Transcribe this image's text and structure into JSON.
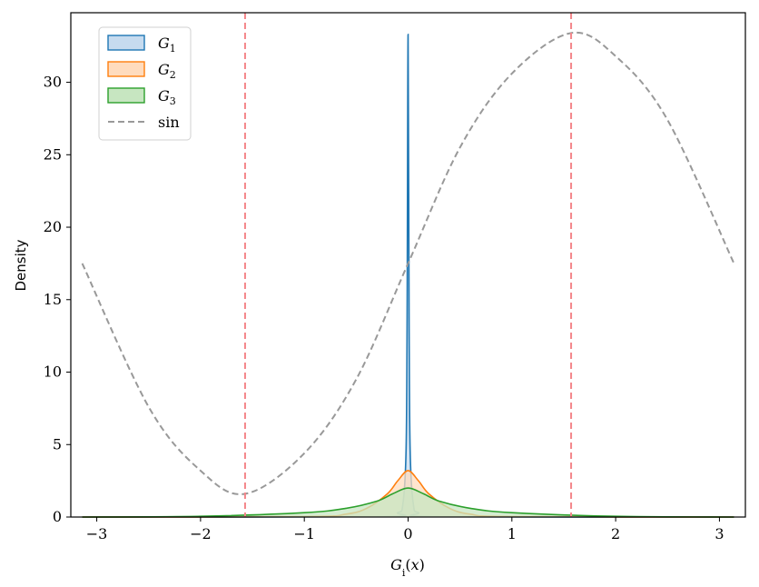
{
  "chart_data": {
    "type": "area",
    "xlabel": "G_i(x)",
    "ylabel": "Density",
    "xlim": [
      -3.25,
      3.25
    ],
    "ylim": [
      0,
      34.8
    ],
    "xticks": [
      -3,
      -2,
      -1,
      0,
      1,
      2,
      3
    ],
    "yticks": [
      0,
      5,
      10,
      15,
      20,
      25,
      30
    ],
    "xtick_labels": [
      "−3",
      "−2",
      "−1",
      "0",
      "1",
      "2",
      "3"
    ],
    "ytick_labels": [
      "0",
      "5",
      "10",
      "15",
      "20",
      "25",
      "30"
    ],
    "grid": false,
    "legend_position": "top-left",
    "series": [
      {
        "name": "G",
        "subscript": "1",
        "kind": "kde",
        "color": "#1f77b4",
        "fill": "#c6dbef",
        "x": [
          -3.14,
          -0.3,
          -0.1,
          -0.05,
          -0.02,
          -0.01,
          0.0,
          0.01,
          0.02,
          0.05,
          0.1,
          0.3,
          3.14
        ],
        "y": [
          0,
          0.02,
          0.3,
          0.9,
          4.5,
          13,
          33.3,
          13,
          4.5,
          0.9,
          0.3,
          0.02,
          0
        ]
      },
      {
        "name": "G",
        "subscript": "2",
        "kind": "kde",
        "color": "#ff7f0e",
        "fill": "#ffdcbe",
        "x": [
          -3.14,
          -1.0,
          -0.6,
          -0.4,
          -0.2,
          -0.1,
          0.0,
          0.1,
          0.2,
          0.4,
          0.6,
          1.0,
          3.14
        ],
        "y": [
          0,
          0.03,
          0.2,
          0.6,
          1.6,
          2.5,
          3.2,
          2.5,
          1.6,
          0.6,
          0.2,
          0.03,
          0
        ]
      },
      {
        "name": "G",
        "subscript": "3",
        "kind": "kde",
        "color": "#2ca02c",
        "fill": "#c7e6c1",
        "x": [
          -3.14,
          -2.0,
          -1.0,
          -0.6,
          -0.3,
          -0.15,
          0.0,
          0.15,
          0.3,
          0.6,
          1.0,
          2.0,
          3.14
        ],
        "y": [
          0,
          0.05,
          0.3,
          0.6,
          1.1,
          1.6,
          2.0,
          1.6,
          1.1,
          0.6,
          0.3,
          0.05,
          0
        ]
      },
      {
        "name": "sin",
        "kind": "dashed-line",
        "color": "#999999",
        "x": [
          -3.14,
          -2.5,
          -2.0,
          -1.57,
          -1.0,
          -0.5,
          0.0,
          0.5,
          1.0,
          1.57,
          2.0,
          2.5,
          3.14
        ],
        "y": [
          17.5,
          7.6,
          3.2,
          1.6,
          4.4,
          9.5,
          17.5,
          25.5,
          30.6,
          33.4,
          31.8,
          27.4,
          17.5
        ]
      }
    ],
    "vlines": {
      "x": [
        -1.5708,
        1.5708
      ],
      "color": "#f4868a",
      "style": "dashed"
    }
  }
}
